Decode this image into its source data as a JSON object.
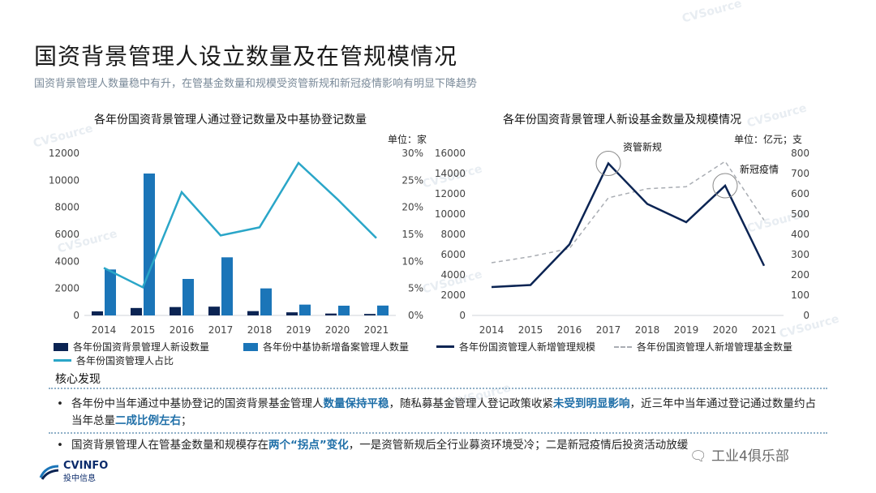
{
  "header": {
    "title": "国资背景管理人设立数量及在管规模情况",
    "subtitle": "国资背景管理人数量稳中有升，在管基金数量和规模受资管新规和新冠疫情影响有明显下降趋势"
  },
  "watermark": "CVSource",
  "colors": {
    "dark_navy": "#0b2453",
    "blue": "#1b75b8",
    "teal": "#2aa6c8",
    "dashed_gray": "#a9adb3"
  },
  "chart_data": [
    {
      "type": "bar",
      "title": "各年份国资背景管理人通过登记数量及中基协登记数量",
      "unit_label": "单位：家",
      "categories": [
        "2014",
        "2015",
        "2016",
        "2017",
        "2018",
        "2019",
        "2020",
        "2021"
      ],
      "left_axis": {
        "ticks": [
          "0",
          "2000",
          "4000",
          "6000",
          "8000",
          "10000",
          "12000"
        ],
        "ylim": [
          0,
          12000
        ]
      },
      "right_axis": {
        "ticks": [
          "0%",
          "5%",
          "10%",
          "15%",
          "20%",
          "25%",
          "30%"
        ],
        "ylim": [
          0,
          30
        ]
      },
      "series": [
        {
          "name": "各年份国资背景管理人新设数量",
          "type": "bar",
          "axis": "left",
          "color": "#0b2453",
          "values": [
            300,
            550,
            620,
            650,
            320,
            230,
            140,
            110
          ]
        },
        {
          "name": "各年份中基协新增备案管理人数量",
          "type": "bar",
          "axis": "left",
          "color": "#1b75b8",
          "values": [
            3400,
            10500,
            2700,
            4300,
            2000,
            800,
            720,
            730
          ]
        },
        {
          "name": "各年份国资管理人占比",
          "type": "line",
          "axis": "right",
          "color": "#2aa6c8",
          "values": [
            8.8,
            5.2,
            22.8,
            14.8,
            16.3,
            28.2,
            21.5,
            14.3
          ]
        }
      ]
    },
    {
      "type": "line",
      "title": "各年份国资背景管理人新设基金数量及规模情况",
      "unit_label": "单位：亿元；支",
      "categories": [
        "2014",
        "2015",
        "2016",
        "2017",
        "2018",
        "2019",
        "2020",
        "2021"
      ],
      "left_axis": {
        "ticks": [
          "0",
          "2000",
          "4000",
          "6000",
          "8000",
          "10000",
          "12000",
          "14000",
          "16000"
        ],
        "ylim": [
          0,
          16000
        ]
      },
      "right_axis": {
        "ticks": [
          "0",
          "100",
          "200",
          "300",
          "400",
          "500",
          "600",
          "700",
          "800"
        ],
        "ylim": [
          0,
          800
        ]
      },
      "series": [
        {
          "name": "各年份国资管理人新增管理规模",
          "type": "line",
          "axis": "left",
          "color": "#0b2453",
          "values": [
            2800,
            3000,
            7000,
            15000,
            11000,
            9200,
            12800,
            4900
          ]
        },
        {
          "name": "各年份国资管理人新增管理基金数量",
          "type": "dashed",
          "axis": "right",
          "color": "#a9adb3",
          "values": [
            260,
            290,
            330,
            580,
            625,
            635,
            760,
            470
          ]
        }
      ],
      "annotations": [
        {
          "text": "资管新规",
          "category": "2017",
          "value": 15000
        },
        {
          "text": "新冠疫情",
          "category": "2020",
          "value": 12800
        }
      ]
    }
  ],
  "findings": {
    "label": "核心发现",
    "bullet_symbol": "•",
    "items": [
      [
        {
          "t": "各年份中当年通过中基协登记的国资背景基金管理人"
        },
        {
          "t": "数量保持平稳",
          "hl": true
        },
        {
          "t": "，随私募基金管理人登记政策收紧"
        },
        {
          "t": "未受到明显影响",
          "hl": true
        },
        {
          "t": "，近三年中当年通过登记通过数量约占当年总量"
        },
        {
          "t": "二成比例左右",
          "hl": true
        },
        {
          "t": "；"
        }
      ],
      [
        {
          "t": "国资背景管理人在管基金数量和规模存在"
        },
        {
          "t": "两个“拐点”变化",
          "hl": true
        },
        {
          "t": "，一是资管新规后全行业募资环境受冷；二是新冠疫情后投资活动放缓"
        }
      ]
    ]
  },
  "footer": {
    "logo_text": "CVINFO",
    "logo_sub": "投中信息",
    "wechat": "工业4俱乐部"
  }
}
